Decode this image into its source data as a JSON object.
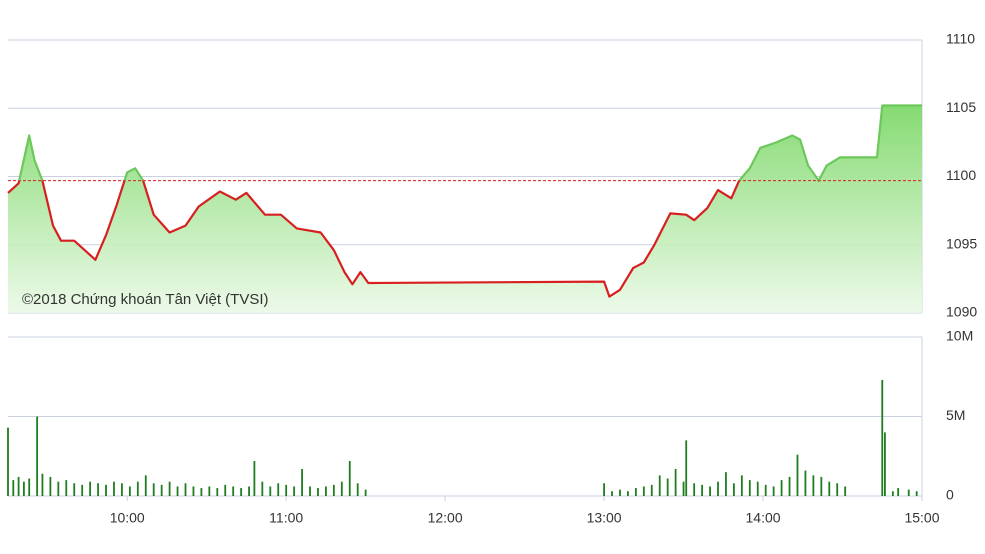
{
  "chart_data": [
    {
      "type": "line",
      "annotation": "©2018 Chứng khoán Tân Việt (TVSI)",
      "x": [
        555,
        559,
        563,
        565,
        568,
        572,
        575,
        580,
        588,
        592,
        596,
        600,
        603,
        606,
        610,
        616,
        622,
        627,
        635,
        641,
        645,
        652,
        658,
        664,
        673,
        678,
        682,
        685,
        688,
        691,
        780,
        782,
        786,
        791,
        795,
        799,
        805,
        811,
        814,
        819,
        823,
        828,
        831,
        835,
        839,
        845,
        851,
        854,
        857,
        861,
        864,
        869,
        883,
        885,
        900
      ],
      "values": [
        1098.8,
        1099.5,
        1103.0,
        1101.2,
        1099.7,
        1096.4,
        1095.3,
        1095.3,
        1093.9,
        1095.7,
        1097.9,
        1100.3,
        1100.6,
        1099.7,
        1097.2,
        1095.9,
        1096.4,
        1097.8,
        1098.9,
        1098.3,
        1098.8,
        1097.2,
        1097.2,
        1096.2,
        1095.9,
        1094.6,
        1093.0,
        1092.1,
        1093.0,
        1092.2,
        1092.3,
        1091.2,
        1091.7,
        1093.3,
        1093.7,
        1095.0,
        1097.3,
        1097.2,
        1096.8,
        1097.7,
        1099.0,
        1098.4,
        1099.7,
        1100.6,
        1102.1,
        1102.5,
        1103.0,
        1102.7,
        1100.8,
        1099.7,
        1100.8,
        1101.4,
        1101.4,
        1105.2,
        1105.2
      ],
      "reference": 1099.7,
      "color_above": "#6cc85a",
      "color_below": "#d81f1f",
      "xlim": [
        555,
        900
      ],
      "ylim": [
        1090,
        1110
      ],
      "yticks": [
        1090,
        1095,
        1100,
        1105,
        1110
      ],
      "grid": true
    },
    {
      "type": "bar",
      "x": [
        555,
        557,
        559,
        561,
        563,
        566,
        568,
        571,
        574,
        577,
        580,
        583,
        586,
        589,
        592,
        595,
        598,
        601,
        604,
        607,
        610,
        613,
        616,
        619,
        622,
        625,
        628,
        631,
        634,
        637,
        640,
        643,
        646,
        648,
        651,
        654,
        657,
        660,
        663,
        666,
        669,
        672,
        675,
        678,
        681,
        684,
        687,
        690,
        780,
        783,
        786,
        789,
        792,
        795,
        798,
        801,
        804,
        807,
        810,
        811,
        814,
        817,
        820,
        823,
        826,
        829,
        832,
        835,
        838,
        841,
        844,
        847,
        850,
        853,
        856,
        859,
        862,
        865,
        868,
        871,
        885,
        886,
        889,
        891,
        895,
        898
      ],
      "values": [
        4.3,
        1.0,
        1.2,
        0.9,
        1.1,
        5.0,
        1.4,
        1.2,
        0.9,
        1.0,
        0.8,
        0.7,
        0.9,
        0.8,
        0.7,
        0.9,
        0.8,
        0.6,
        0.9,
        1.3,
        0.8,
        0.7,
        0.9,
        0.6,
        0.8,
        0.6,
        0.5,
        0.6,
        0.5,
        0.7,
        0.6,
        0.5,
        0.6,
        2.2,
        0.9,
        0.6,
        0.8,
        0.7,
        0.6,
        1.7,
        0.6,
        0.5,
        0.6,
        0.7,
        0.9,
        2.2,
        0.8,
        0.4,
        0.8,
        0.3,
        0.4,
        0.3,
        0.5,
        0.6,
        0.7,
        1.3,
        1.1,
        1.7,
        0.9,
        3.5,
        0.8,
        0.7,
        0.6,
        0.9,
        1.5,
        0.8,
        1.3,
        1.0,
        0.9,
        0.7,
        0.6,
        1.0,
        1.2,
        2.6,
        1.6,
        1.3,
        1.2,
        0.9,
        0.8,
        0.6,
        7.3,
        4.0,
        0.3,
        0.5,
        0.4,
        0.3
      ],
      "color": "#1e7d1e",
      "xlim": [
        555,
        900
      ],
      "xticks": [
        {
          "value": 600,
          "label": "10:00"
        },
        {
          "value": 660,
          "label": "11:00"
        },
        {
          "value": 720,
          "label": "12:00"
        },
        {
          "value": 780,
          "label": "13:00"
        },
        {
          "value": 840,
          "label": "14:00"
        },
        {
          "value": 900,
          "label": "15:00"
        }
      ],
      "ylim": [
        0,
        10
      ],
      "yticks": [
        0,
        {
          "value": 5,
          "label": "5M"
        },
        {
          "value": 10,
          "label": "10M"
        }
      ],
      "grid": true
    }
  ]
}
